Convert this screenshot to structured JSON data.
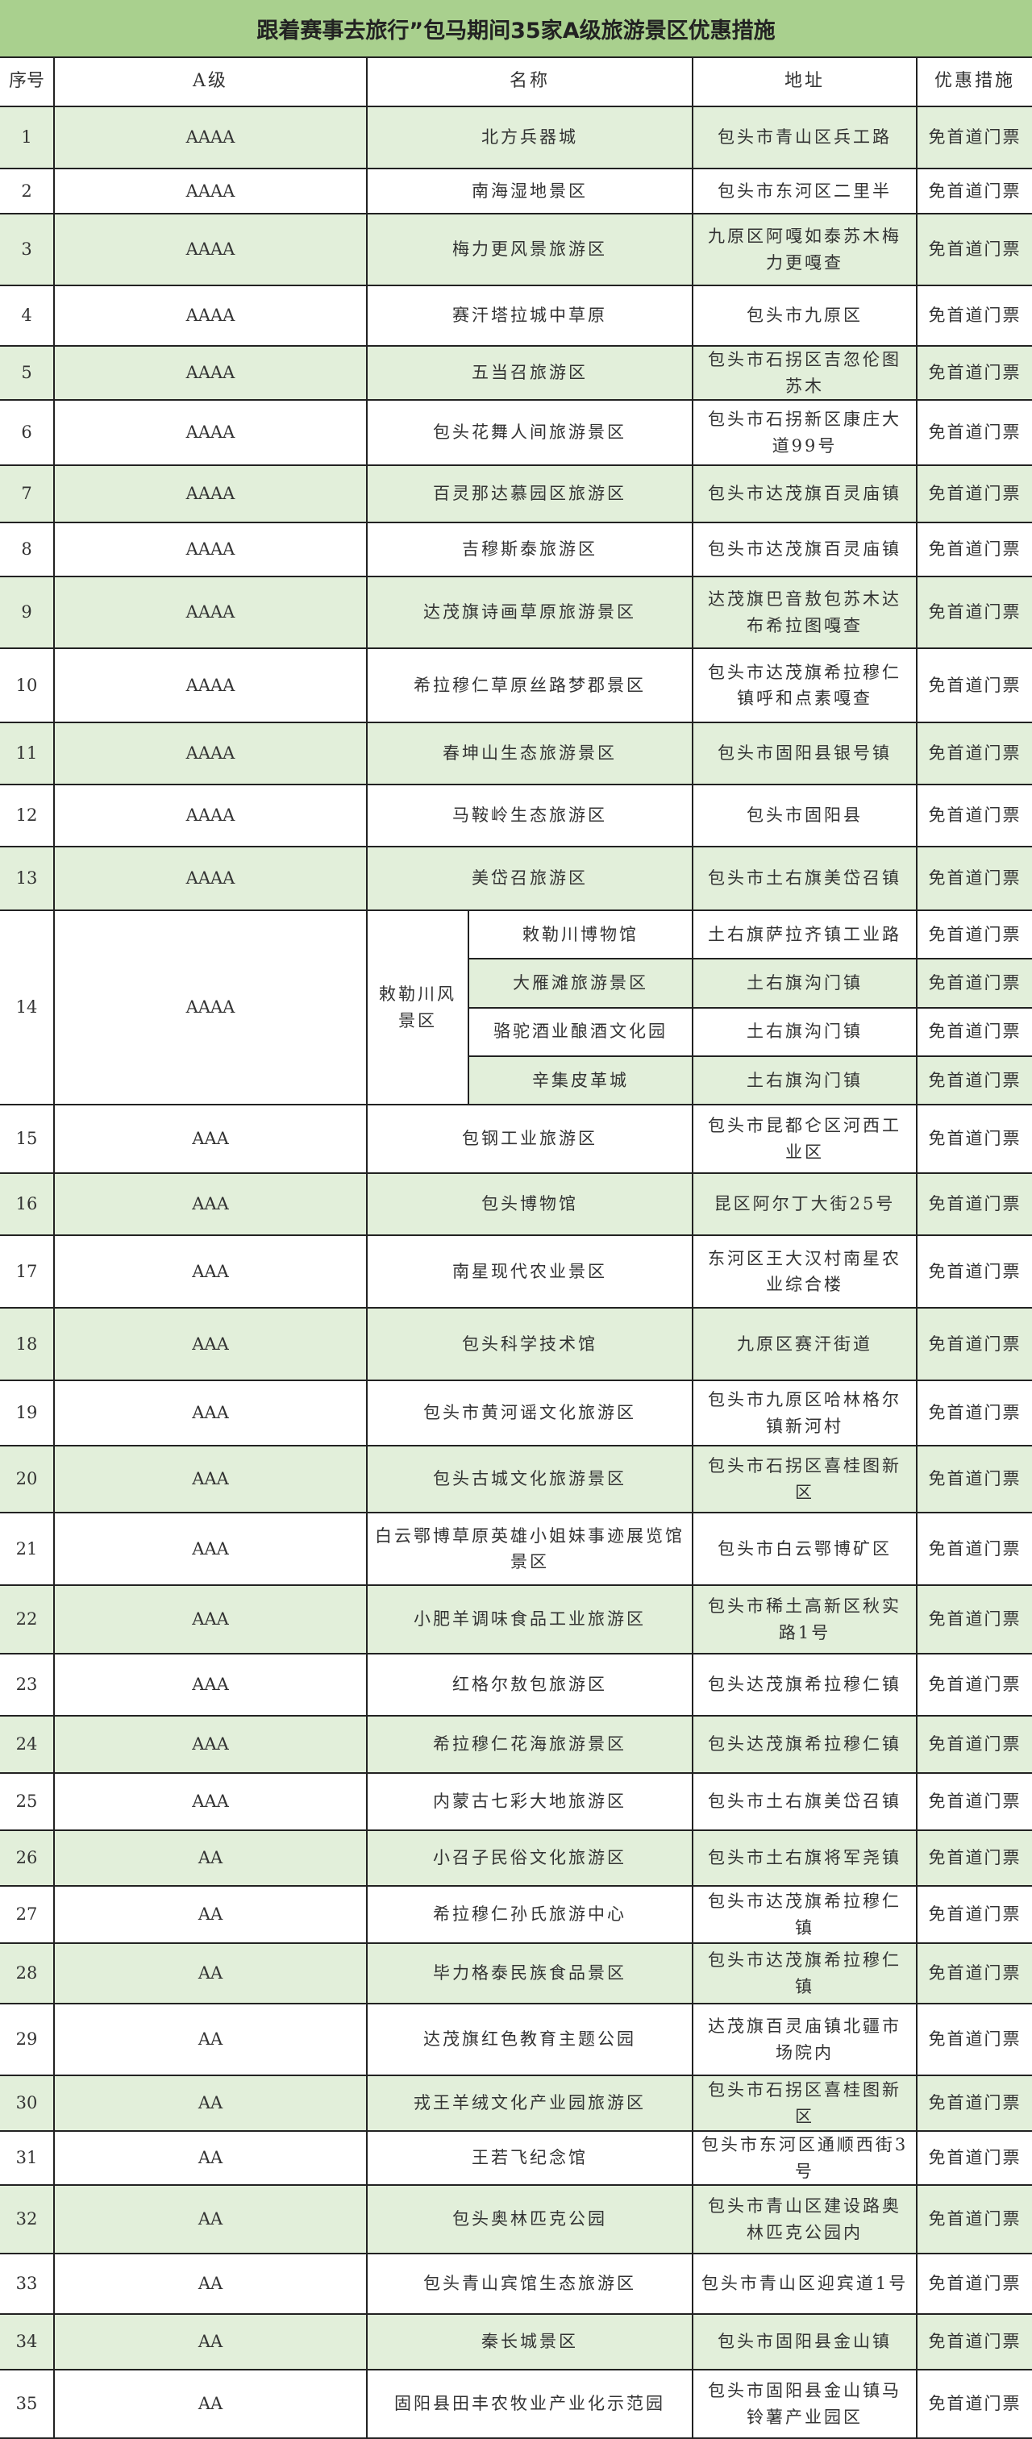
{
  "title": "跟着赛事去旅行”包马期间35家A级旅游景区优惠措施",
  "colors": {
    "title_bg": "#a9d08e",
    "row_alt_bg": "#e2efda",
    "border": "#222222"
  },
  "headers": {
    "seq": "序号",
    "level": "A级",
    "name": "名称",
    "address": "地址",
    "measure": "优惠措施"
  },
  "rows": [
    {
      "seq": "1",
      "level": "AAAA",
      "name": "北方兵器城",
      "address": "包头市青山区兵工路",
      "measure": "免首道门票"
    },
    {
      "seq": "2",
      "level": "AAAA",
      "name": "南海湿地景区",
      "address": "包头市东河区二里半",
      "measure": "免首道门票"
    },
    {
      "seq": "3",
      "level": "AAAA",
      "name": "梅力更风景旅游区",
      "address": "九原区阿嘎如泰苏木梅力更嘎查",
      "measure": "免首道门票"
    },
    {
      "seq": "4",
      "level": "AAAA",
      "name": "赛汗塔拉城中草原",
      "address": "包头市九原区",
      "measure": "免首道门票"
    },
    {
      "seq": "5",
      "level": "AAAA",
      "name": "五当召旅游区",
      "address": "包头市石拐区吉忽伦图苏木",
      "measure": "免首道门票"
    },
    {
      "seq": "6",
      "level": "AAAA",
      "name": "包头花舞人间旅游景区",
      "address": "包头市石拐新区康庄大道99号",
      "measure": "免首道门票"
    },
    {
      "seq": "7",
      "level": "AAAA",
      "name": "百灵那达慕园区旅游区",
      "address": "包头市达茂旗百灵庙镇",
      "measure": "免首道门票"
    },
    {
      "seq": "8",
      "level": "AAAA",
      "name": "吉穆斯泰旅游区",
      "address": "包头市达茂旗百灵庙镇",
      "measure": "免首道门票"
    },
    {
      "seq": "9",
      "level": "AAAA",
      "name": "达茂旗诗画草原旅游景区",
      "address": "达茂旗巴音敖包苏木达布希拉图嘎查",
      "measure": "免首道门票"
    },
    {
      "seq": "10",
      "level": "AAAA",
      "name": "希拉穆仁草原丝路梦郡景区",
      "address": "包头市达茂旗希拉穆仁镇呼和点素嘎查",
      "measure": "免首道门票"
    },
    {
      "seq": "11",
      "level": "AAAA",
      "name": "春坤山生态旅游景区",
      "address": "包头市固阳县银号镇",
      "measure": "免首道门票"
    },
    {
      "seq": "12",
      "level": "AAAA",
      "name": "马鞍岭生态旅游区",
      "address": "包头市固阳县",
      "measure": "免首道门票"
    },
    {
      "seq": "13",
      "level": "AAAA",
      "name": "美岱召旅游区",
      "address": "包头市土右旗美岱召镇",
      "measure": "免首道门票"
    },
    {
      "seq": "14",
      "level": "AAAA",
      "group": "敕勒川风景区",
      "subs": [
        {
          "name": "敕勒川博物馆",
          "address": "土右旗萨拉齐镇工业路",
          "measure": "免首道门票"
        },
        {
          "name": "大雁滩旅游景区",
          "address": "土右旗沟门镇",
          "measure": "免首道门票"
        },
        {
          "name": "骆驼酒业酿酒文化园",
          "address": "土右旗沟门镇",
          "measure": "免首道门票"
        },
        {
          "name": "辛集皮革城",
          "address": "土右旗沟门镇",
          "measure": "免首道门票"
        }
      ]
    },
    {
      "seq": "15",
      "level": "AAA",
      "name": "包钢工业旅游区",
      "address": "包头市昆都仑区河西工业区",
      "measure": "免首道门票"
    },
    {
      "seq": "16",
      "level": "AAA",
      "name": "包头博物馆",
      "address": "昆区阿尔丁大街25号",
      "measure": "免首道门票"
    },
    {
      "seq": "17",
      "level": "AAA",
      "name": "南星现代农业景区",
      "address": "东河区王大汉村南星农业综合楼",
      "measure": "免首道门票"
    },
    {
      "seq": "18",
      "level": "AAA",
      "name": "包头科学技术馆",
      "address": "九原区赛汗街道",
      "measure": "免首道门票"
    },
    {
      "seq": "19",
      "level": "AAA",
      "name": "包头市黄河谣文化旅游区",
      "address": "包头市九原区哈林格尔镇新河村",
      "measure": "免首道门票"
    },
    {
      "seq": "20",
      "level": "AAA",
      "name": "包头古城文化旅游景区",
      "address": "包头市石拐区喜桂图新区",
      "measure": "免首道门票"
    },
    {
      "seq": "21",
      "level": "AAA",
      "name": "白云鄂博草原英雄小姐妹事迹展览馆景区",
      "address": "包头市白云鄂博矿区",
      "measure": "免首道门票"
    },
    {
      "seq": "22",
      "level": "AAA",
      "name": "小肥羊调味食品工业旅游区",
      "address": "包头市稀土高新区秋实路1号",
      "measure": "免首道门票"
    },
    {
      "seq": "23",
      "level": "AAA",
      "name": "红格尔敖包旅游区",
      "address": "包头达茂旗希拉穆仁镇",
      "measure": "免首道门票"
    },
    {
      "seq": "24",
      "level": "AAA",
      "name": "希拉穆仁花海旅游景区",
      "address": "包头达茂旗希拉穆仁镇",
      "measure": "免首道门票"
    },
    {
      "seq": "25",
      "level": "AAA",
      "name": "内蒙古七彩大地旅游区",
      "address": "包头市土右旗美岱召镇",
      "measure": "免首道门票"
    },
    {
      "seq": "26",
      "level": "AA",
      "name": "小召子民俗文化旅游区",
      "address": "包头市土右旗将军尧镇",
      "measure": "免首道门票"
    },
    {
      "seq": "27",
      "level": "AA",
      "name": "希拉穆仁孙氏旅游中心",
      "address": "包头市达茂旗希拉穆仁镇",
      "measure": "免首道门票"
    },
    {
      "seq": "28",
      "level": "AA",
      "name": "毕力格泰民族食品景区",
      "address": "包头市达茂旗希拉穆仁镇",
      "measure": "免首道门票"
    },
    {
      "seq": "29",
      "level": "AA",
      "name": "达茂旗红色教育主题公园",
      "address": "达茂旗百灵庙镇北疆市场院内",
      "measure": "免首道门票"
    },
    {
      "seq": "30",
      "level": "AA",
      "name": "戎王羊绒文化产业园旅游区",
      "address": "包头市石拐区喜桂图新区",
      "measure": "免首道门票"
    },
    {
      "seq": "31",
      "level": "AA",
      "name": "王若飞纪念馆",
      "address": "包头市东河区通顺西街3号",
      "measure": "免首道门票"
    },
    {
      "seq": "32",
      "level": "AA",
      "name": "包头奥林匹克公园",
      "address": "包头市青山区建设路奥林匹克公园内",
      "measure": "免首道门票"
    },
    {
      "seq": "33",
      "level": "AA",
      "name": "包头青山宾馆生态旅游区",
      "address": "包头市青山区迎宾道1号",
      "measure": "免首道门票"
    },
    {
      "seq": "34",
      "level": "AA",
      "name": "秦长城景区",
      "address": "包头市固阳县金山镇",
      "measure": "免首道门票"
    },
    {
      "seq": "35",
      "level": "AA",
      "name": "固阳县田丰农牧业产业化示范园",
      "address": "包头市固阳县金山镇马铃薯产业园区",
      "measure": "免首道门票"
    }
  ]
}
